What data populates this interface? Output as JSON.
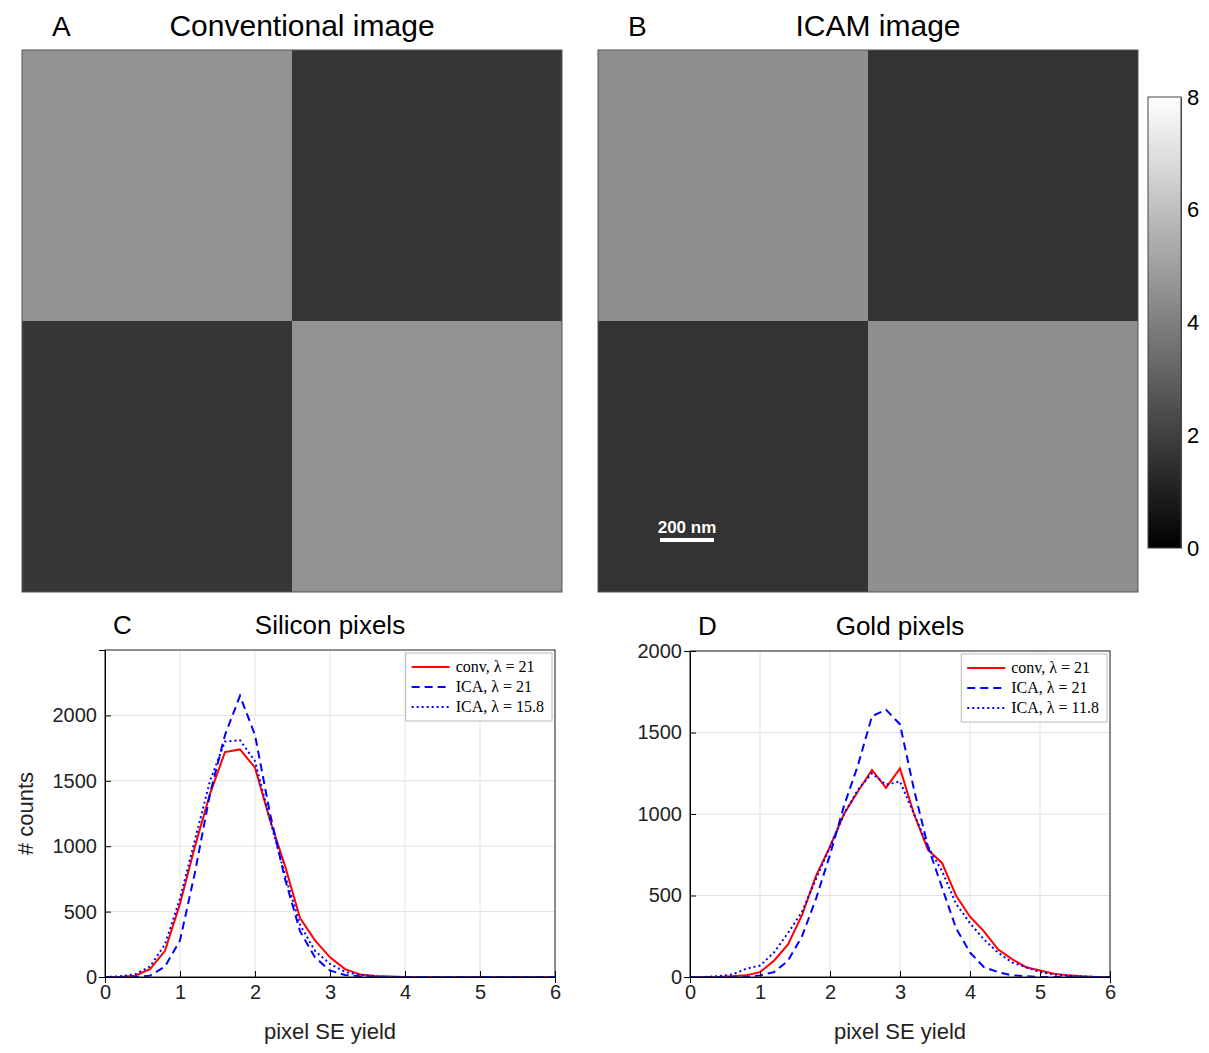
{
  "chart_data": [
    {
      "type": "heatmap",
      "panel_label": "A",
      "title": "Conventional image",
      "cells": [
        [
          4.6,
          1.7
        ],
        [
          1.7,
          4.6
        ]
      ],
      "tick_labels": false
    },
    {
      "type": "heatmap",
      "panel_label": "B",
      "title": "ICAM image",
      "cells": [
        [
          4.5,
          1.6
        ],
        [
          1.6,
          4.5
        ]
      ],
      "tick_labels": false,
      "scale_bar": "200 nm",
      "colorbar": {
        "range": [
          0,
          8
        ],
        "ticks": [
          0,
          2,
          4,
          6,
          8
        ]
      }
    },
    {
      "type": "line",
      "panel_label": "C",
      "title": "Silicon pixels",
      "x_label": "pixel SE yield",
      "y_label": "# counts",
      "x": [
        0,
        0.2,
        0.4,
        0.6,
        0.8,
        1,
        1.2,
        1.4,
        1.6,
        1.8,
        2,
        2.2,
        2.4,
        2.6,
        2.8,
        3,
        3.2,
        3.4,
        3.6,
        3.8,
        4,
        4.2,
        4.4,
        4.6,
        4.8,
        5,
        5.2,
        5.4,
        5.6,
        5.8,
        6
      ],
      "series": [
        {
          "name": "conv, λ = 21",
          "color": "#ff0000",
          "line_style": "solid",
          "values": [
            0,
            0,
            10,
            60,
            200,
            560,
            1000,
            1400,
            1720,
            1740,
            1600,
            1200,
            850,
            450,
            280,
            150,
            60,
            20,
            8,
            3,
            0,
            0,
            0,
            0,
            0,
            0,
            0,
            0,
            0,
            0,
            0
          ]
        },
        {
          "name": "ICA, λ = 21",
          "color": "#0000ff",
          "line_style": "dashed",
          "values": [
            0,
            0,
            0,
            10,
            80,
            280,
            800,
            1400,
            1850,
            2150,
            1850,
            1250,
            750,
            350,
            150,
            50,
            15,
            5,
            0,
            0,
            0,
            0,
            0,
            0,
            0,
            0,
            0,
            0,
            0,
            0,
            0
          ]
        },
        {
          "name": "ICA, λ = 15.8",
          "color": "#0000ff",
          "line_style": "dotted",
          "values": [
            0,
            5,
            20,
            80,
            250,
            600,
            1050,
            1500,
            1800,
            1810,
            1650,
            1200,
            780,
            400,
            200,
            100,
            40,
            15,
            5,
            0,
            0,
            0,
            0,
            0,
            0,
            0,
            0,
            0,
            0,
            0,
            0
          ]
        }
      ],
      "xlim": [
        0,
        6
      ],
      "xticks": [
        0,
        1,
        2,
        3,
        4,
        5,
        6
      ],
      "ylim": [
        0,
        2500
      ],
      "yticks": [
        0,
        500,
        1000,
        1500,
        2000
      ],
      "grid": true,
      "legend": "top-right"
    },
    {
      "type": "line",
      "panel_label": "D",
      "title": "Gold pixels",
      "x_label": "pixel SE yield",
      "x": [
        0,
        0.2,
        0.4,
        0.6,
        0.8,
        1,
        1.2,
        1.4,
        1.6,
        1.8,
        2,
        2.2,
        2.4,
        2.6,
        2.8,
        3,
        3.2,
        3.4,
        3.6,
        3.8,
        4,
        4.2,
        4.4,
        4.6,
        4.8,
        5,
        5.2,
        5.4,
        5.6,
        5.8,
        6
      ],
      "series": [
        {
          "name": "conv, λ = 21",
          "color": "#ff0000",
          "line_style": "solid",
          "values": [
            0,
            0,
            0,
            5,
            10,
            30,
            100,
            200,
            380,
            620,
            800,
            1000,
            1140,
            1270,
            1160,
            1280,
            1000,
            780,
            700,
            500,
            370,
            280,
            170,
            110,
            60,
            40,
            20,
            10,
            5,
            0,
            0
          ]
        },
        {
          "name": "ICA, λ = 21",
          "color": "#0000ff",
          "line_style": "dashed",
          "values": [
            0,
            0,
            0,
            0,
            0,
            10,
            30,
            100,
            250,
            480,
            750,
            1050,
            1300,
            1600,
            1640,
            1550,
            1150,
            800,
            550,
            300,
            150,
            60,
            30,
            10,
            5,
            0,
            0,
            0,
            0,
            0,
            0
          ]
        },
        {
          "name": "ICA, λ = 11.8",
          "color": "#0000ff",
          "line_style": "dotted",
          "values": [
            0,
            0,
            5,
            15,
            50,
            70,
            150,
            270,
            400,
            600,
            800,
            1000,
            1150,
            1250,
            1180,
            1200,
            1000,
            800,
            650,
            450,
            330,
            230,
            150,
            90,
            60,
            30,
            15,
            8,
            3,
            0,
            0
          ]
        }
      ],
      "xlim": [
        0,
        6
      ],
      "xticks": [
        0,
        1,
        2,
        3,
        4,
        5,
        6
      ],
      "ylim": [
        0,
        2000
      ],
      "yticks": [
        0,
        500,
        1000,
        1500,
        2000
      ],
      "grid": true,
      "legend": "top-right"
    }
  ]
}
